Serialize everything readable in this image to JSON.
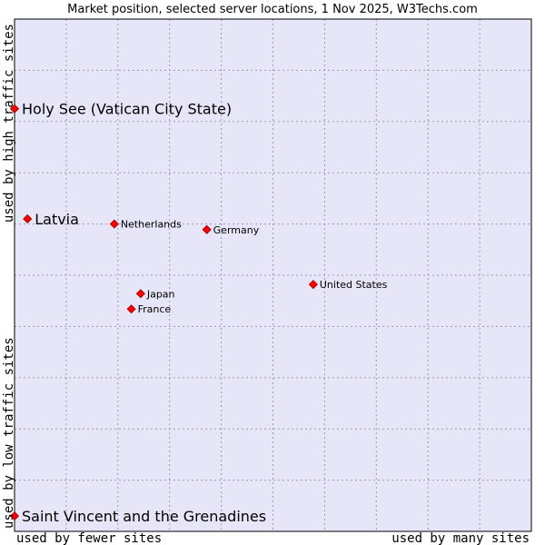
{
  "chart_data": {
    "type": "scatter",
    "title": "Market position, selected server locations, 1 Nov 2025, W3Techs.com",
    "xlabel_low": "used by fewer sites",
    "xlabel_high": "used by many sites",
    "ylabel_low": "used by low traffic sites",
    "ylabel_high": "used by high traffic sites",
    "xlim": [
      0,
      100
    ],
    "ylim": [
      0,
      100
    ],
    "grid": true,
    "colors": {
      "plot_bg": "#e6e6f8",
      "grid": "#9b9bb8",
      "frame": "#000000",
      "marker": "#ff0000",
      "marker_edge": "#990000"
    },
    "points": [
      {
        "name": "Holy See (Vatican City State)",
        "x": 0.0,
        "y": 82.5,
        "size": "big"
      },
      {
        "name": "Latvia",
        "x": 2.5,
        "y": 61.0,
        "size": "big"
      },
      {
        "name": "Netherlands",
        "x": 19.3,
        "y": 60.0,
        "size": "small"
      },
      {
        "name": "Germany",
        "x": 37.2,
        "y": 58.9,
        "size": "small"
      },
      {
        "name": "United States",
        "x": 57.8,
        "y": 48.2,
        "size": "small"
      },
      {
        "name": "Japan",
        "x": 24.4,
        "y": 46.4,
        "size": "small"
      },
      {
        "name": "France",
        "x": 22.6,
        "y": 43.4,
        "size": "small"
      },
      {
        "name": "Saint Vincent and the Grenadines",
        "x": 0.0,
        "y": 3.0,
        "size": "big"
      }
    ]
  }
}
